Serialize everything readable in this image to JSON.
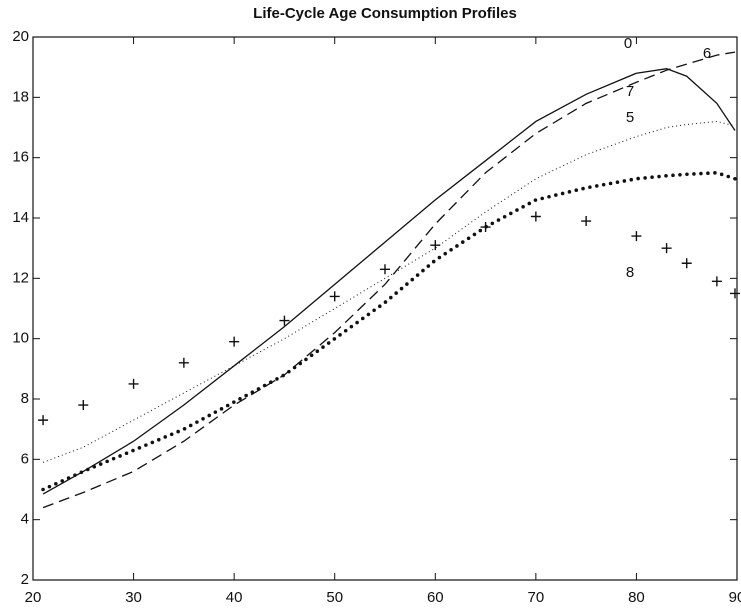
{
  "chart_data": {
    "type": "line",
    "title": "Life-Cycle Age Consumption Profiles",
    "x": [
      21,
      25,
      30,
      35,
      40,
      45,
      50,
      55,
      60,
      65,
      70,
      75,
      80,
      83,
      85,
      88,
      89.8
    ],
    "series": [
      {
        "name": "0",
        "color": "#111111",
        "style": "solid",
        "values": [
          4.85,
          5.6,
          6.6,
          7.8,
          9.1,
          10.4,
          11.8,
          13.2,
          14.6,
          15.9,
          17.2,
          18.1,
          18.8,
          18.95,
          18.7,
          17.8,
          16.9
        ]
      },
      {
        "name": "6",
        "color": "#111111",
        "style": "dashed",
        "values": [
          4.4,
          4.9,
          5.6,
          6.6,
          7.8,
          8.8,
          10.2,
          11.8,
          13.8,
          15.5,
          16.8,
          17.8,
          18.5,
          18.9,
          19.1,
          19.4,
          19.5
        ]
      },
      {
        "name": "7",
        "color": "#111111",
        "style": "dotted",
        "values": [
          5.9,
          6.4,
          7.3,
          8.2,
          9.1,
          10.0,
          11.0,
          12.0,
          13.0,
          14.2,
          15.3,
          16.1,
          16.7,
          17.0,
          17.1,
          17.2,
          17.05
        ]
      },
      {
        "name": "5",
        "color": "#111111",
        "style": "heavy-dots",
        "values": [
          5.0,
          5.6,
          6.3,
          7.0,
          7.9,
          8.8,
          10.0,
          11.2,
          12.6,
          13.7,
          14.6,
          15.0,
          15.3,
          15.4,
          15.45,
          15.5,
          15.3
        ]
      },
      {
        "name": "8",
        "color": "#111111",
        "style": "plus",
        "values": [
          7.3,
          7.8,
          8.5,
          9.2,
          9.9,
          10.6,
          11.4,
          12.3,
          13.1,
          13.7,
          14.05,
          13.9,
          13.4,
          13.0,
          12.5,
          11.9,
          11.5
        ]
      }
    ],
    "xlim": [
      20,
      90
    ],
    "xticks": [
      20,
      30,
      40,
      50,
      60,
      70,
      80,
      90
    ],
    "ylim": [
      2,
      20
    ],
    "yticks": [
      2,
      4,
      6,
      8,
      10,
      12,
      14,
      16,
      18,
      20
    ]
  }
}
